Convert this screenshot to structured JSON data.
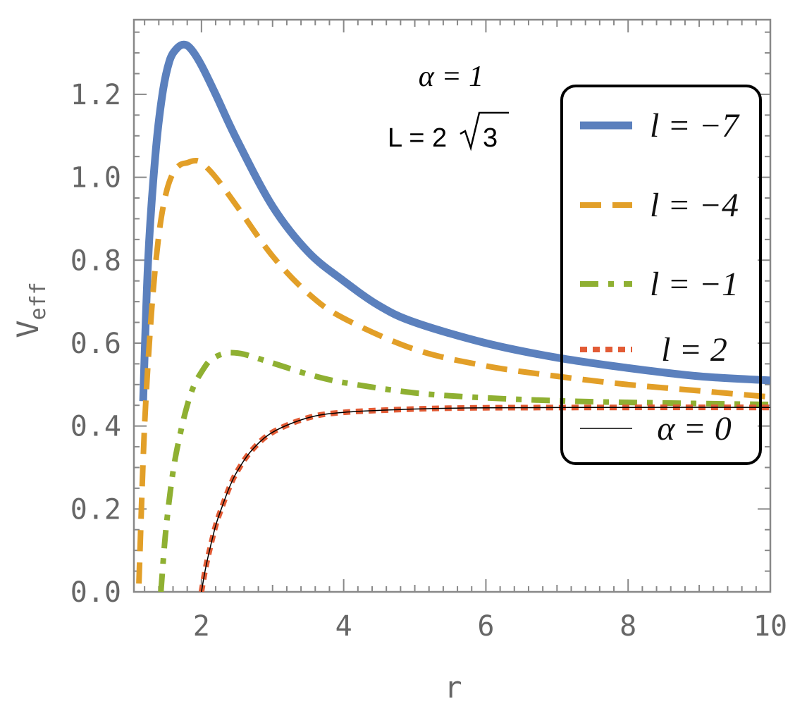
{
  "chart_data": {
    "type": "line",
    "title": "",
    "xlabel": "r",
    "ylabel_main": "V",
    "ylabel_sub": "eff",
    "xlim": [
      1.05,
      10.0
    ],
    "ylim": [
      0.0,
      1.38
    ],
    "x_ticks": [
      2,
      4,
      6,
      8,
      10
    ],
    "x_tick_labels": [
      "2",
      "4",
      "6",
      "8",
      "10"
    ],
    "y_ticks": [
      0.0,
      0.2,
      0.4,
      0.6,
      0.8,
      1.0,
      1.2
    ],
    "y_tick_labels": [
      "0.0",
      "0.2",
      "0.4",
      "0.6",
      "0.8",
      "1.0",
      "1.2"
    ],
    "grid": false,
    "legend_position": "top-right",
    "annotation": {
      "alpha_line": "α = 1",
      "L_prefix": "L = 2",
      "L_root": "3"
    },
    "series": [
      {
        "name": "l = −7",
        "color": "#5b80bd",
        "style": "solid",
        "x": [
          1.18,
          1.25,
          1.35,
          1.45,
          1.55,
          1.65,
          1.75,
          1.85,
          2.0,
          2.2,
          2.5,
          3.0,
          3.5,
          4.0,
          4.5,
          5.0,
          6.0,
          7.0,
          8.0,
          9.0,
          10.0
        ],
        "y": [
          0.46,
          0.8,
          1.05,
          1.2,
          1.28,
          1.31,
          1.32,
          1.31,
          1.27,
          1.2,
          1.09,
          0.93,
          0.82,
          0.75,
          0.69,
          0.65,
          0.6,
          0.565,
          0.54,
          0.52,
          0.51
        ]
      },
      {
        "name": "l = −4",
        "color": "#e29f28",
        "style": "dashed",
        "x": [
          1.12,
          1.2,
          1.3,
          1.4,
          1.5,
          1.6,
          1.7,
          1.8,
          1.9,
          2.0,
          2.2,
          2.5,
          3.0,
          3.5,
          4.0,
          5.0,
          6.0,
          7.0,
          8.0,
          9.0,
          10.0
        ],
        "y": [
          0.02,
          0.4,
          0.68,
          0.86,
          0.96,
          1.01,
          1.03,
          1.035,
          1.04,
          1.035,
          1.0,
          0.93,
          0.81,
          0.72,
          0.66,
          0.585,
          0.545,
          0.52,
          0.5,
          0.485,
          0.47
        ]
      },
      {
        "name": "l = −1",
        "color": "#8fb032",
        "style": "dashdot",
        "x": [
          1.43,
          1.5,
          1.6,
          1.7,
          1.8,
          1.9,
          2.0,
          2.1,
          2.2,
          2.3,
          2.4,
          2.6,
          3.0,
          3.5,
          4.0,
          5.0,
          6.0,
          7.0,
          8.0,
          10.0
        ],
        "y": [
          0.0,
          0.15,
          0.29,
          0.38,
          0.45,
          0.5,
          0.53,
          0.555,
          0.567,
          0.574,
          0.577,
          0.573,
          0.552,
          0.525,
          0.505,
          0.48,
          0.468,
          0.461,
          0.457,
          0.452
        ]
      },
      {
        "name": "l = 2",
        "color": "#e25b35",
        "style": "dotted",
        "x": [
          2.0,
          2.05,
          2.1,
          2.2,
          2.3,
          2.4,
          2.5,
          2.7,
          3.0,
          3.5,
          4.0,
          5.0,
          6.0,
          8.0,
          10.0
        ],
        "y": [
          0.0,
          0.05,
          0.09,
          0.16,
          0.21,
          0.255,
          0.29,
          0.34,
          0.385,
          0.42,
          0.433,
          0.441,
          0.444,
          0.445,
          0.445
        ]
      },
      {
        "name": "α = 0",
        "color": "#000000",
        "style": "thin",
        "x": [
          2.0,
          2.05,
          2.1,
          2.2,
          2.3,
          2.4,
          2.5,
          2.7,
          3.0,
          3.5,
          4.0,
          5.0,
          6.0,
          8.0,
          10.0
        ],
        "y": [
          0.0,
          0.05,
          0.09,
          0.16,
          0.21,
          0.255,
          0.29,
          0.34,
          0.385,
          0.42,
          0.433,
          0.441,
          0.444,
          0.445,
          0.445
        ]
      }
    ]
  }
}
